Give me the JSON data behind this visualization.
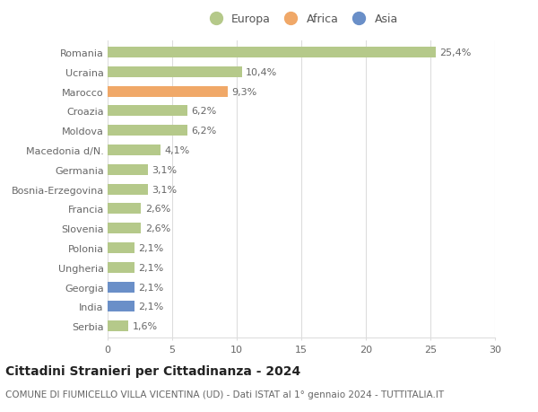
{
  "categories": [
    "Romania",
    "Ucraina",
    "Marocco",
    "Croazia",
    "Moldova",
    "Macedonia d/N.",
    "Germania",
    "Bosnia-Erzegovina",
    "Francia",
    "Slovenia",
    "Polonia",
    "Ungheria",
    "Georgia",
    "India",
    "Serbia"
  ],
  "values": [
    25.4,
    10.4,
    9.3,
    6.2,
    6.2,
    4.1,
    3.1,
    3.1,
    2.6,
    2.6,
    2.1,
    2.1,
    2.1,
    2.1,
    1.6
  ],
  "labels": [
    "25,4%",
    "10,4%",
    "9,3%",
    "6,2%",
    "6,2%",
    "4,1%",
    "3,1%",
    "3,1%",
    "2,6%",
    "2,6%",
    "2,1%",
    "2,1%",
    "2,1%",
    "2,1%",
    "1,6%"
  ],
  "continent": [
    "Europa",
    "Europa",
    "Africa",
    "Europa",
    "Europa",
    "Europa",
    "Europa",
    "Europa",
    "Europa",
    "Europa",
    "Europa",
    "Europa",
    "Asia",
    "Asia",
    "Europa"
  ],
  "colors": {
    "Europa": "#b5c98a",
    "Africa": "#f0a868",
    "Asia": "#6a8fc8"
  },
  "legend_items": [
    "Europa",
    "Africa",
    "Asia"
  ],
  "legend_colors": [
    "#b5c98a",
    "#f0a868",
    "#6a8fc8"
  ],
  "title": "Cittadini Stranieri per Cittadinanza - 2024",
  "subtitle": "COMUNE DI FIUMICELLO VILLA VICENTINA (UD) - Dati ISTAT al 1° gennaio 2024 - TUTTITALIA.IT",
  "xlim": [
    0,
    30
  ],
  "xticks": [
    0,
    5,
    10,
    15,
    20,
    25,
    30
  ],
  "background_color": "#ffffff",
  "grid_color": "#dddddd",
  "bar_height": 0.55,
  "label_fontsize": 8,
  "tick_fontsize": 8,
  "title_fontsize": 10,
  "subtitle_fontsize": 7.5
}
